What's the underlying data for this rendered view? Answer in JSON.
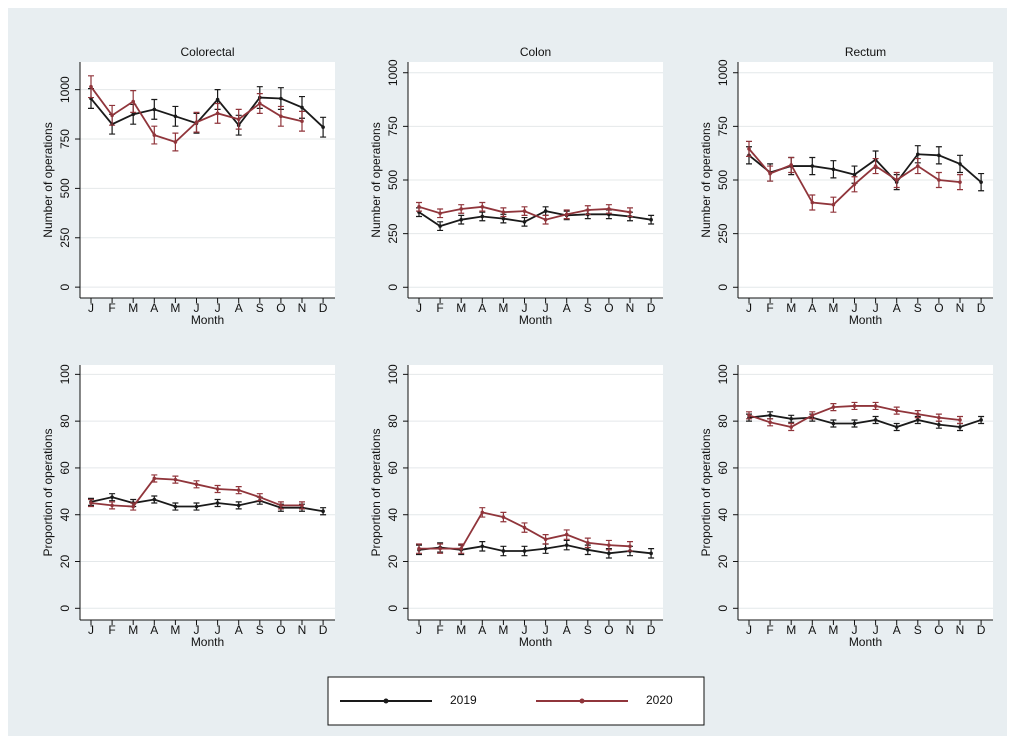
{
  "chart_data": [
    {
      "type": "line",
      "title": "Colorectal",
      "x_label": "Month",
      "y_label": "Number of operations",
      "categories": [
        "J",
        "F",
        "M",
        "A",
        "M",
        "J",
        "J",
        "A",
        "S",
        "O",
        "N",
        "D"
      ],
      "ylim": [
        -55,
        1140
      ],
      "yticks": [
        0,
        250,
        500,
        750,
        1000
      ],
      "grid": true,
      "series": [
        {
          "name": "2019",
          "color": "#1a1a1a",
          "values": [
            955,
            825,
            875,
            900,
            865,
            830,
            950,
            820,
            960,
            955,
            910,
            810
          ],
          "errors": [
            50,
            50,
            50,
            50,
            50,
            50,
            50,
            50,
            55,
            55,
            55,
            50
          ]
        },
        {
          "name": "2020",
          "color": "#90353b",
          "values": [
            1015,
            870,
            940,
            770,
            735,
            835,
            880,
            850,
            930,
            865,
            840,
            null
          ],
          "errors": [
            55,
            50,
            55,
            45,
            45,
            50,
            50,
            50,
            50,
            50,
            50,
            null
          ]
        }
      ]
    },
    {
      "type": "line",
      "title": "Colon",
      "x_label": "Month",
      "y_label": "Number of operations",
      "categories": [
        "J",
        "F",
        "M",
        "A",
        "M",
        "J",
        "J",
        "A",
        "S",
        "O",
        "N",
        "D"
      ],
      "ylim": [
        -50,
        1050
      ],
      "yticks": [
        0,
        250,
        500,
        750,
        1000
      ],
      "grid": true,
      "series": [
        {
          "name": "2019",
          "color": "#1a1a1a",
          "values": [
            350,
            285,
            315,
            330,
            320,
            305,
            355,
            335,
            340,
            340,
            330,
            315
          ],
          "errors": [
            20,
            20,
            20,
            20,
            20,
            20,
            20,
            20,
            20,
            20,
            20,
            20
          ]
        },
        {
          "name": "2020",
          "color": "#90353b",
          "values": [
            375,
            345,
            365,
            375,
            350,
            355,
            315,
            340,
            360,
            365,
            350,
            null
          ],
          "errors": [
            20,
            20,
            20,
            20,
            20,
            20,
            20,
            20,
            20,
            20,
            20,
            null
          ]
        }
      ]
    },
    {
      "type": "line",
      "title": "Rectum",
      "x_label": "Month",
      "y_label": "Number of operations",
      "categories": [
        "J",
        "F",
        "M",
        "A",
        "M",
        "J",
        "J",
        "A",
        "S",
        "O",
        "N",
        "D"
      ],
      "ylim": [
        -50,
        1050
      ],
      "yticks": [
        0,
        250,
        500,
        750,
        1000
      ],
      "grid": true,
      "series": [
        {
          "name": "2019",
          "color": "#1a1a1a",
          "values": [
            615,
            535,
            565,
            565,
            550,
            525,
            595,
            490,
            620,
            615,
            575,
            490
          ],
          "errors": [
            40,
            40,
            40,
            40,
            40,
            40,
            40,
            35,
            40,
            40,
            40,
            40
          ]
        },
        {
          "name": "2020",
          "color": "#90353b",
          "values": [
            645,
            530,
            570,
            395,
            385,
            480,
            565,
            500,
            565,
            500,
            490,
            null
          ],
          "errors": [
            35,
            35,
            35,
            35,
            35,
            35,
            35,
            35,
            35,
            35,
            35,
            null
          ]
        }
      ]
    },
    {
      "type": "line",
      "x_label": "Month",
      "y_label": "Proportion of operations",
      "categories": [
        "J",
        "F",
        "M",
        "A",
        "M",
        "J",
        "J",
        "A",
        "S",
        "O",
        "N",
        "D"
      ],
      "ylim": [
        -5,
        104
      ],
      "yticks": [
        0,
        20,
        40,
        60,
        80,
        100
      ],
      "grid": true,
      "series": [
        {
          "name": "2019",
          "color": "#1a1a1a",
          "values": [
            45.5,
            47.5,
            45,
            46.5,
            43.5,
            43.5,
            45,
            44,
            46,
            43,
            43,
            41.5
          ],
          "errors": [
            1.5,
            1.5,
            1.5,
            1.5,
            1.5,
            1.5,
            1.5,
            1.5,
            1.5,
            1.5,
            1.5,
            1.5
          ]
        },
        {
          "name": "2020",
          "color": "#90353b",
          "values": [
            45,
            44,
            43.5,
            55.5,
            55,
            53,
            51,
            50.5,
            47.5,
            44,
            44,
            null
          ],
          "errors": [
            1.5,
            1.5,
            1.5,
            1.5,
            1.5,
            1.5,
            1.5,
            1.5,
            1.5,
            1.5,
            1.5,
            null
          ]
        }
      ]
    },
    {
      "type": "line",
      "x_label": "Month",
      "y_label": "Proportion of operations",
      "categories": [
        "J",
        "F",
        "M",
        "A",
        "M",
        "J",
        "J",
        "A",
        "S",
        "O",
        "N",
        "D"
      ],
      "ylim": [
        -5,
        104
      ],
      "yticks": [
        0,
        20,
        40,
        60,
        80,
        100
      ],
      "grid": true,
      "series": [
        {
          "name": "2019",
          "color": "#1a1a1a",
          "values": [
            25,
            26,
            25,
            26.5,
            24.5,
            24.5,
            25.5,
            27,
            25,
            23.5,
            24.5,
            23.5
          ],
          "errors": [
            2,
            2,
            2,
            2,
            2,
            2,
            2,
            2,
            2,
            2,
            2,
            2
          ]
        },
        {
          "name": "2020",
          "color": "#90353b",
          "values": [
            25.5,
            25.5,
            25.5,
            41,
            39,
            34.5,
            29.5,
            31.5,
            28,
            27,
            26.5,
            null
          ],
          "errors": [
            2,
            2,
            2,
            2,
            2,
            2,
            2,
            2,
            2,
            2,
            2,
            null
          ]
        }
      ]
    },
    {
      "type": "line",
      "x_label": "Month",
      "y_label": "Proportion of operations",
      "categories": [
        "J",
        "F",
        "M",
        "A",
        "M",
        "J",
        "J",
        "A",
        "S",
        "O",
        "N",
        "D"
      ],
      "ylim": [
        -5,
        104
      ],
      "yticks": [
        0,
        20,
        40,
        60,
        80,
        100
      ],
      "grid": true,
      "series": [
        {
          "name": "2019",
          "color": "#1a1a1a",
          "values": [
            81.5,
            82.5,
            81,
            81.5,
            79,
            79,
            80.5,
            77.5,
            80.5,
            78.5,
            77.5,
            80.5
          ],
          "errors": [
            1.5,
            1.5,
            1.5,
            1.5,
            1.5,
            1.5,
            1.5,
            1.5,
            1.5,
            1.5,
            1.5,
            1.5
          ]
        },
        {
          "name": "2020",
          "color": "#90353b",
          "values": [
            82.5,
            79.5,
            77.5,
            82.5,
            86,
            86.5,
            86.5,
            84.5,
            83,
            81.5,
            80.5,
            null
          ],
          "errors": [
            1.5,
            1.5,
            1.5,
            1.5,
            1.5,
            1.5,
            1.5,
            1.5,
            1.5,
            1.5,
            1.5,
            null
          ]
        }
      ]
    }
  ]
}
